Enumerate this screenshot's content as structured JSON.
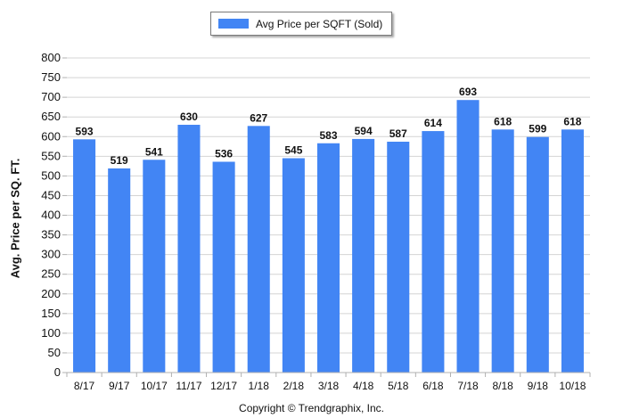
{
  "chart_data": {
    "type": "bar",
    "categories": [
      "8/17",
      "9/17",
      "10/17",
      "11/17",
      "12/17",
      "1/18",
      "2/18",
      "3/18",
      "4/18",
      "5/18",
      "6/18",
      "7/18",
      "8/18",
      "9/18",
      "10/18"
    ],
    "series": [
      {
        "name": "Avg Price per SQFT (Sold)",
        "values": [
          593,
          519,
          541,
          630,
          536,
          627,
          545,
          583,
          594,
          587,
          614,
          693,
          618,
          599,
          618
        ]
      }
    ],
    "title": "",
    "xlabel": "",
    "ylabel": "Avg. Price per SQ. FT.",
    "ylim": [
      0,
      800
    ],
    "yticks": [
      0,
      50,
      100,
      150,
      200,
      250,
      300,
      350,
      400,
      450,
      500,
      550,
      600,
      650,
      700,
      750,
      800
    ],
    "grid": true,
    "legend_position": "top-center",
    "bar_color": "#4285f4",
    "data_labels": true
  },
  "footer": {
    "credit": "Copyright © Trendgraphix, Inc."
  }
}
